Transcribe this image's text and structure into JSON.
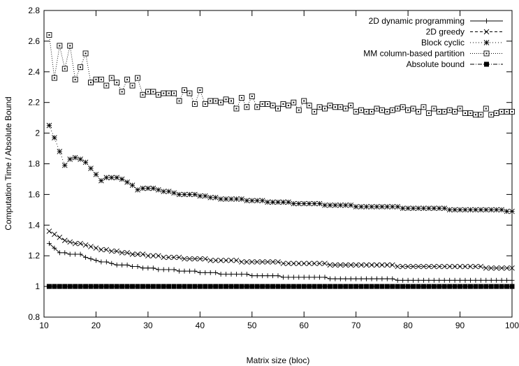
{
  "chart_data": {
    "type": "line",
    "xlabel": "Matrix size (bloc)",
    "ylabel": "Computation Time / Absolute Bound",
    "xlim": [
      10,
      100
    ],
    "ylim": [
      0.8,
      2.8
    ],
    "xticks": [
      10,
      20,
      30,
      40,
      50,
      60,
      70,
      80,
      90,
      100
    ],
    "yticks": [
      0.8,
      1,
      1.2,
      1.4,
      1.6,
      1.8,
      2,
      2.2,
      2.4,
      2.6,
      2.8
    ],
    "ytick_labels": [
      "0.8",
      "1",
      "1.2",
      "1.4",
      "1.6",
      "1.8",
      "2",
      "2.2",
      "2.4",
      "2.6",
      "2.8"
    ],
    "grid": false,
    "legend_position": "top-right",
    "x": [
      11,
      12,
      13,
      14,
      15,
      16,
      17,
      18,
      19,
      20,
      21,
      22,
      23,
      24,
      25,
      26,
      27,
      28,
      29,
      30,
      31,
      32,
      33,
      34,
      35,
      36,
      37,
      38,
      39,
      40,
      41,
      42,
      43,
      44,
      45,
      46,
      47,
      48,
      49,
      50,
      51,
      52,
      53,
      54,
      55,
      56,
      57,
      58,
      59,
      60,
      61,
      62,
      63,
      64,
      65,
      66,
      67,
      68,
      69,
      70,
      71,
      72,
      73,
      74,
      75,
      76,
      77,
      78,
      79,
      80,
      81,
      82,
      83,
      84,
      85,
      86,
      87,
      88,
      89,
      90,
      91,
      92,
      93,
      94,
      95,
      96,
      97,
      98,
      99,
      100
    ],
    "series": [
      {
        "name": "2D dynamic programming",
        "marker": "plus",
        "dash": "",
        "values": [
          1.28,
          1.25,
          1.22,
          1.22,
          1.21,
          1.21,
          1.21,
          1.19,
          1.18,
          1.17,
          1.16,
          1.16,
          1.15,
          1.14,
          1.14,
          1.14,
          1.13,
          1.13,
          1.12,
          1.12,
          1.12,
          1.11,
          1.11,
          1.11,
          1.11,
          1.1,
          1.1,
          1.1,
          1.1,
          1.09,
          1.09,
          1.09,
          1.09,
          1.08,
          1.08,
          1.08,
          1.08,
          1.08,
          1.08,
          1.07,
          1.07,
          1.07,
          1.07,
          1.07,
          1.07,
          1.06,
          1.06,
          1.06,
          1.06,
          1.06,
          1.06,
          1.06,
          1.06,
          1.06,
          1.05,
          1.05,
          1.05,
          1.05,
          1.05,
          1.05,
          1.05,
          1.05,
          1.05,
          1.05,
          1.05,
          1.05,
          1.05,
          1.04,
          1.04,
          1.04,
          1.04,
          1.04,
          1.04,
          1.04,
          1.04,
          1.04,
          1.04,
          1.04,
          1.04,
          1.04,
          1.04,
          1.04,
          1.04,
          1.04,
          1.04,
          1.04,
          1.04,
          1.04,
          1.04,
          1.04
        ]
      },
      {
        "name": "2D greedy",
        "marker": "cross",
        "dash": "4,3",
        "values": [
          1.36,
          1.34,
          1.32,
          1.3,
          1.29,
          1.28,
          1.28,
          1.27,
          1.26,
          1.25,
          1.24,
          1.24,
          1.23,
          1.23,
          1.22,
          1.22,
          1.21,
          1.21,
          1.21,
          1.2,
          1.2,
          1.2,
          1.19,
          1.19,
          1.19,
          1.19,
          1.18,
          1.18,
          1.18,
          1.18,
          1.18,
          1.17,
          1.17,
          1.17,
          1.17,
          1.17,
          1.17,
          1.16,
          1.16,
          1.16,
          1.16,
          1.16,
          1.16,
          1.16,
          1.16,
          1.15,
          1.15,
          1.15,
          1.15,
          1.15,
          1.15,
          1.15,
          1.15,
          1.15,
          1.14,
          1.14,
          1.14,
          1.14,
          1.14,
          1.14,
          1.14,
          1.14,
          1.14,
          1.14,
          1.14,
          1.14,
          1.14,
          1.13,
          1.13,
          1.13,
          1.13,
          1.13,
          1.13,
          1.13,
          1.13,
          1.13,
          1.13,
          1.13,
          1.13,
          1.13,
          1.13,
          1.13,
          1.13,
          1.13,
          1.12,
          1.12,
          1.12,
          1.12,
          1.12,
          1.12
        ]
      },
      {
        "name": "Block cyclic",
        "marker": "star",
        "dash": "1,3",
        "values": [
          2.05,
          1.97,
          1.88,
          1.79,
          1.83,
          1.84,
          1.83,
          1.81,
          1.77,
          1.73,
          1.69,
          1.71,
          1.71,
          1.71,
          1.7,
          1.68,
          1.66,
          1.63,
          1.64,
          1.64,
          1.64,
          1.63,
          1.62,
          1.62,
          1.61,
          1.6,
          1.6,
          1.6,
          1.6,
          1.59,
          1.59,
          1.58,
          1.58,
          1.57,
          1.57,
          1.57,
          1.57,
          1.57,
          1.56,
          1.56,
          1.56,
          1.56,
          1.55,
          1.55,
          1.55,
          1.55,
          1.55,
          1.54,
          1.54,
          1.54,
          1.54,
          1.54,
          1.54,
          1.53,
          1.53,
          1.53,
          1.53,
          1.53,
          1.53,
          1.52,
          1.52,
          1.52,
          1.52,
          1.52,
          1.52,
          1.52,
          1.52,
          1.52,
          1.51,
          1.51,
          1.51,
          1.51,
          1.51,
          1.51,
          1.51,
          1.51,
          1.51,
          1.5,
          1.5,
          1.5,
          1.5,
          1.5,
          1.5,
          1.5,
          1.5,
          1.5,
          1.5,
          1.5,
          1.49,
          1.49
        ]
      },
      {
        "name": "MM column-based partition",
        "marker": "box",
        "dash": "1,2",
        "values": [
          2.64,
          2.36,
          2.57,
          2.42,
          2.57,
          2.35,
          2.43,
          2.52,
          2.33,
          2.35,
          2.35,
          2.31,
          2.36,
          2.33,
          2.27,
          2.35,
          2.31,
          2.36,
          2.25,
          2.27,
          2.27,
          2.25,
          2.26,
          2.26,
          2.26,
          2.21,
          2.28,
          2.26,
          2.19,
          2.28,
          2.19,
          2.21,
          2.21,
          2.2,
          2.22,
          2.21,
          2.16,
          2.23,
          2.17,
          2.24,
          2.17,
          2.19,
          2.19,
          2.18,
          2.16,
          2.19,
          2.18,
          2.2,
          2.15,
          2.21,
          2.18,
          2.14,
          2.17,
          2.16,
          2.18,
          2.17,
          2.17,
          2.16,
          2.18,
          2.14,
          2.15,
          2.14,
          2.14,
          2.16,
          2.15,
          2.14,
          2.15,
          2.16,
          2.17,
          2.15,
          2.16,
          2.14,
          2.17,
          2.13,
          2.16,
          2.14,
          2.14,
          2.15,
          2.14,
          2.16,
          2.13,
          2.13,
          2.12,
          2.12,
          2.16,
          2.12,
          2.13,
          2.14,
          2.14,
          2.14
        ]
      },
      {
        "name": "Absolute bound",
        "marker": "filled-box",
        "dash": "6,2,1,2",
        "values": [
          1,
          1,
          1,
          1,
          1,
          1,
          1,
          1,
          1,
          1,
          1,
          1,
          1,
          1,
          1,
          1,
          1,
          1,
          1,
          1,
          1,
          1,
          1,
          1,
          1,
          1,
          1,
          1,
          1,
          1,
          1,
          1,
          1,
          1,
          1,
          1,
          1,
          1,
          1,
          1,
          1,
          1,
          1,
          1,
          1,
          1,
          1,
          1,
          1,
          1,
          1,
          1,
          1,
          1,
          1,
          1,
          1,
          1,
          1,
          1,
          1,
          1,
          1,
          1,
          1,
          1,
          1,
          1,
          1,
          1,
          1,
          1,
          1,
          1,
          1,
          1,
          1,
          1,
          1,
          1,
          1,
          1,
          1,
          1,
          1,
          1,
          1,
          1,
          1,
          1
        ]
      }
    ]
  }
}
